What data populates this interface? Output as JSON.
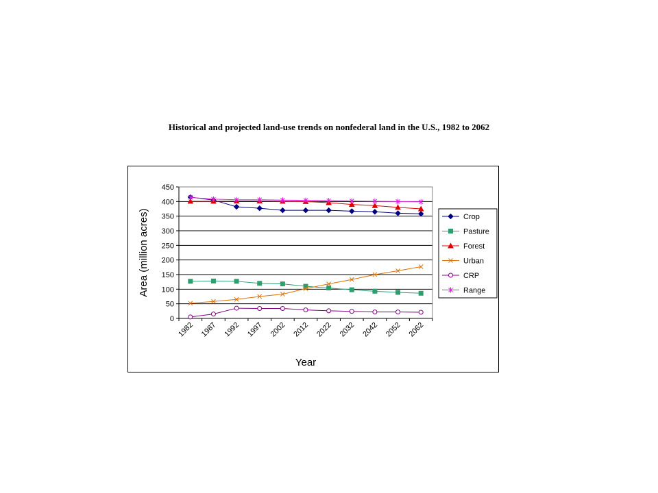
{
  "chart_data": {
    "type": "line",
    "title": "Historical  and projected land-use trends on nonfederal land in the U.S., 1982 to 2062",
    "xlabel": "Year",
    "ylabel": "Area (million acres)",
    "ylim": [
      0,
      450
    ],
    "yticks": [
      0,
      50,
      100,
      150,
      200,
      250,
      300,
      350,
      400,
      450
    ],
    "grid": "horizontal",
    "legend_position": "right",
    "categories": [
      "1982",
      "1987",
      "1992",
      "1997",
      "2002",
      "2012",
      "2022",
      "2032",
      "2042",
      "2052",
      "2062"
    ],
    "series": [
      {
        "name": "Crop",
        "color": "#000080",
        "marker": "diamond",
        "values": [
          415,
          405,
          382,
          377,
          370,
          370,
          370,
          367,
          365,
          360,
          358
        ]
      },
      {
        "name": "Pasture",
        "color": "#2E9E6E",
        "marker": "square",
        "values": [
          127,
          128,
          127,
          120,
          118,
          110,
          104,
          98,
          93,
          89,
          86
        ]
      },
      {
        "name": "Forest",
        "color": "#E00000",
        "marker": "triangle",
        "values": [
          401,
          401,
          402,
          402,
          401,
          400,
          396,
          390,
          386,
          380,
          375
        ]
      },
      {
        "name": "Urban",
        "color": "#E07000",
        "marker": "x",
        "values": [
          52,
          58,
          65,
          75,
          83,
          102,
          118,
          133,
          150,
          163,
          177
        ]
      },
      {
        "name": "CRP",
        "color": "#800080",
        "marker": "circle",
        "values": [
          5,
          15,
          35,
          34,
          34,
          29,
          26,
          24,
          22,
          22,
          21
        ]
      },
      {
        "name": "Range",
        "color": "#E020E0",
        "marker": "star",
        "values": [
          414,
          408,
          406,
          406,
          405,
          404,
          403,
          402,
          401,
          400,
          399
        ]
      }
    ]
  }
}
